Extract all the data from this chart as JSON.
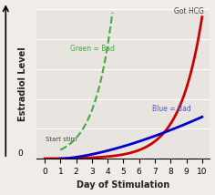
{
  "title": "",
  "xlabel": "Day of Stimulation",
  "ylabel": "Estradiol Level",
  "xlim": [
    -0.5,
    10.5
  ],
  "ylim": [
    0,
    1.0
  ],
  "xticks": [
    0,
    1,
    2,
    3,
    4,
    5,
    6,
    7,
    8,
    9,
    10
  ],
  "background_color": "#f0ece8",
  "plot_bg_color": "#e8e4e0",
  "red_label": "Got HCG",
  "green_label": "Green = Bad",
  "blue_label": "Blue = Bad",
  "start_label": "Start stim",
  "red_color": "#cc0000",
  "green_color": "#44aa44",
  "blue_color": "#0000cc",
  "grid_color": "#ffffff",
  "annotation_color": "#444444"
}
